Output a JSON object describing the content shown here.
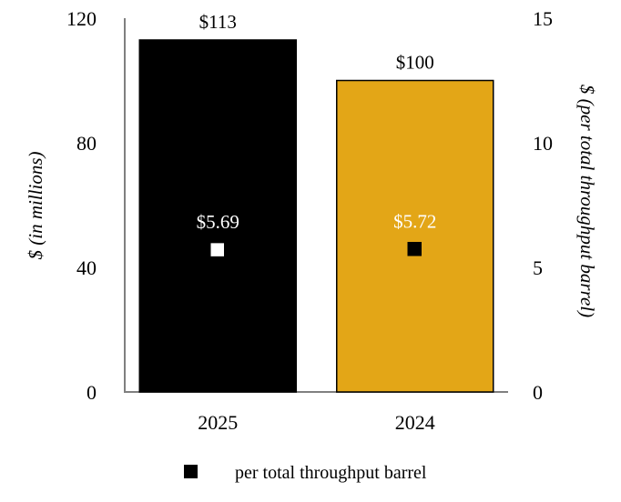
{
  "chart_data": {
    "type": "bar",
    "categories": [
      "2025",
      "2024"
    ],
    "series": [
      {
        "values": [
          113,
          100
        ],
        "value_labels": [
          "$113",
          "$100"
        ],
        "colors": [
          "#000000",
          "#E3A617"
        ],
        "axis": "left"
      },
      {
        "name": "per total throughput barrel",
        "type": "scatter",
        "values": [
          5.69,
          5.72
        ],
        "value_labels": [
          "$5.69",
          "$5.72"
        ],
        "marker_colors": [
          "#FFFFFF",
          "#000000"
        ],
        "label_color": "#FFFFFF",
        "axis": "right"
      }
    ],
    "ylabel": "$ (in millions)",
    "y2label": "$ (per total throughput barrel)",
    "ylim": [
      0,
      120
    ],
    "yticks": [
      "0",
      "40",
      "80",
      "120"
    ],
    "y2lim": [
      0,
      15
    ],
    "y2ticks": [
      "0",
      "5",
      "10",
      "15"
    ],
    "grid": false,
    "legend_position": "bottom",
    "legend_marker_color": "#000000"
  }
}
